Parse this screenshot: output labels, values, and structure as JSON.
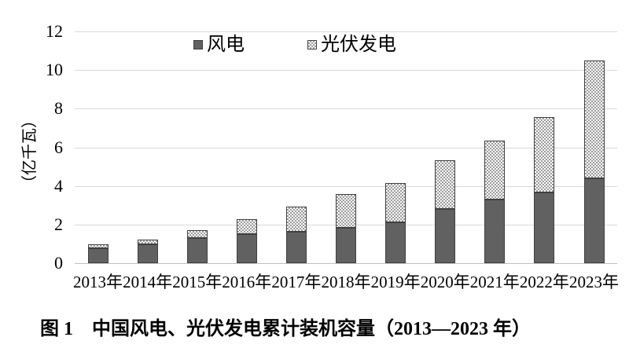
{
  "caption": "图 1　中国风电、光伏发电累计装机容量（2013—2023 年）",
  "colors": {
    "wind_fill": "#616161",
    "bar_border": "#3f3f3f",
    "pv_dot": "#9a9a9a",
    "pv_bg": "#ffffff",
    "gridline": "#d9d9d9",
    "axis_line": "#bfbfbf",
    "text": "#000000"
  },
  "chart_data": {
    "type": "bar",
    "stacked": true,
    "title": "",
    "categories": [
      "2013年",
      "2014年",
      "2015年",
      "2016年",
      "2017年",
      "2018年",
      "2019年",
      "2020年",
      "2021年",
      "2022年",
      "2023年"
    ],
    "series": [
      {
        "name": "风电",
        "values": [
          0.77,
          0.96,
          1.29,
          1.49,
          1.64,
          1.84,
          2.1,
          2.81,
          3.28,
          3.65,
          4.41
        ]
      },
      {
        "name": "光伏发电",
        "values": [
          0.19,
          0.28,
          0.43,
          0.77,
          1.3,
          1.74,
          2.04,
          2.53,
          3.06,
          3.93,
          6.09
        ]
      }
    ],
    "xlabel": "",
    "ylabel": "（亿千瓦）",
    "ylim": [
      0,
      12
    ],
    "ytick_step": 2,
    "yticks": [
      0,
      2,
      4,
      6,
      8,
      10,
      12
    ],
    "grid": true,
    "legend_position": "top-center"
  }
}
